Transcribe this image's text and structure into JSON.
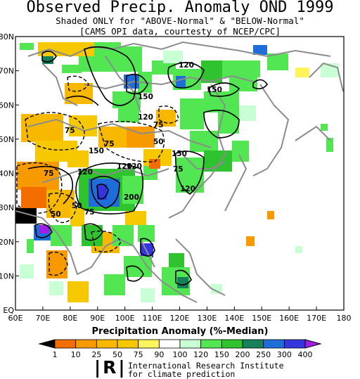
{
  "title": "Observed Precip. Anomaly OND 1999",
  "subtitle1": "Shaded ONLY for \"ABOVE-Normal\" & \"BELOW-Normal\"",
  "subtitle2": "[CAMS_OPI data, courtesty of NCEP/CPC]",
  "lon_labels": [
    "60E",
    "70E",
    "80E",
    "90E",
    "100E",
    "110E",
    "120E",
    "130E",
    "140E",
    "150E",
    "160E",
    "170E",
    "180"
  ],
  "lat_labels": [
    "EQ",
    "10N",
    "20N",
    "30N",
    "40N",
    "50N",
    "60N",
    "70N",
    "80N"
  ],
  "contour_labels": [
    "120",
    "150",
    "150",
    "120",
    "75",
    "75",
    "50",
    "75",
    "150",
    "120",
    "150",
    "75",
    "120",
    "50",
    "75",
    "200",
    "50",
    "120",
    "120",
    "75"
  ],
  "legend": {
    "title": "Precipitation Anomaly (%-Median)",
    "values": [
      "1",
      "10",
      "25",
      "50",
      "75",
      "90",
      "100",
      "120",
      "150",
      "200",
      "250",
      "300",
      "400"
    ],
    "colors": [
      "#000000",
      "#f46d00",
      "#f79a00",
      "#f9b800",
      "#f5c800",
      "#fff45c",
      "#ffffff",
      "#c8ffd4",
      "#52e652",
      "#2fc32f",
      "#15805a",
      "#1f6dd9",
      "#3535e0",
      "#a01ee6"
    ]
  },
  "footer": {
    "logo": "|R|",
    "org_line1": "International Research Institute",
    "org_line2": "for climate prediction"
  }
}
